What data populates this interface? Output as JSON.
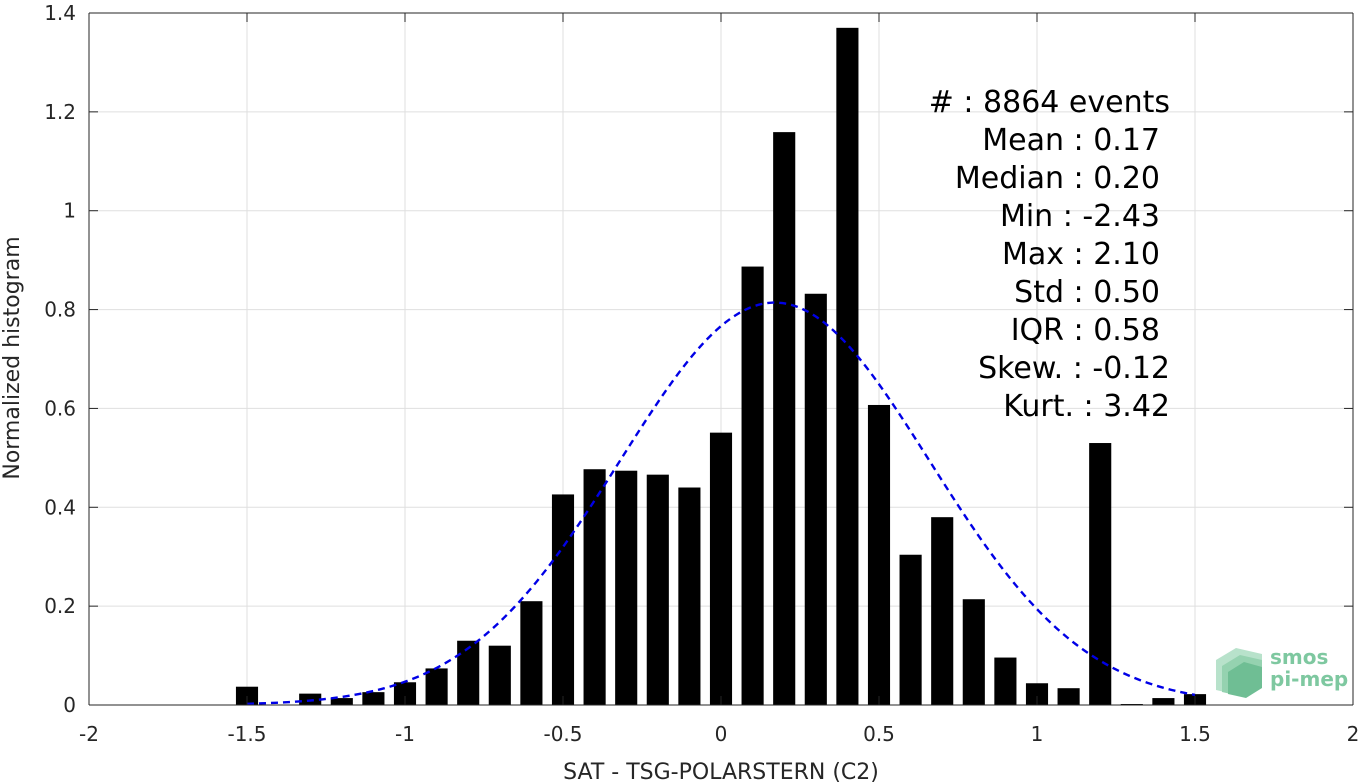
{
  "chart_data": {
    "type": "bar",
    "xlabel": "SAT - TSG-POLARSTERN (C2)",
    "ylabel": "Normalized histogram",
    "xlim": [
      -2,
      2
    ],
    "ylim": [
      0,
      1.4
    ],
    "grid": true,
    "xticks": [
      "-2",
      "-1.5",
      "-1",
      "-0.5",
      "0",
      "0.5",
      "1",
      "1.5",
      "2"
    ],
    "yticks": [
      "0",
      "0.2",
      "0.4",
      "0.6",
      "0.8",
      "1",
      "1.2",
      "1.4"
    ],
    "bins": [
      {
        "x": -1.5,
        "value": 0.037
      },
      {
        "x": -1.3,
        "value": 0.023
      },
      {
        "x": -1.2,
        "value": 0.014
      },
      {
        "x": -1.1,
        "value": 0.026
      },
      {
        "x": -1.0,
        "value": 0.046
      },
      {
        "x": -0.9,
        "value": 0.074
      },
      {
        "x": -0.8,
        "value": 0.13
      },
      {
        "x": -0.7,
        "value": 0.12
      },
      {
        "x": -0.6,
        "value": 0.21
      },
      {
        "x": -0.5,
        "value": 0.426
      },
      {
        "x": -0.4,
        "value": 0.477
      },
      {
        "x": -0.3,
        "value": 0.474
      },
      {
        "x": -0.2,
        "value": 0.466
      },
      {
        "x": -0.1,
        "value": 0.44
      },
      {
        "x": 0.0,
        "value": 0.551
      },
      {
        "x": 0.1,
        "value": 0.887
      },
      {
        "x": 0.2,
        "value": 1.159
      },
      {
        "x": 0.3,
        "value": 0.832
      },
      {
        "x": 0.4,
        "value": 1.37
      },
      {
        "x": 0.5,
        "value": 0.607
      },
      {
        "x": 0.6,
        "value": 0.304
      },
      {
        "x": 0.7,
        "value": 0.38
      },
      {
        "x": 0.8,
        "value": 0.214
      },
      {
        "x": 0.9,
        "value": 0.096
      },
      {
        "x": 1.0,
        "value": 0.044
      },
      {
        "x": 1.1,
        "value": 0.034
      },
      {
        "x": 1.2,
        "value": 0.53
      },
      {
        "x": 1.3,
        "value": 0.002
      },
      {
        "x": 1.4,
        "value": 0.014
      },
      {
        "x": 1.5,
        "value": 0.022
      }
    ],
    "bar_color": "#000000",
    "fit_curve": {
      "type": "normal",
      "mean": 0.17,
      "std": 0.49,
      "x_range": [
        -1.5,
        1.5
      ],
      "color": "#0000e6",
      "style": "dashed"
    },
    "stats": [
      {
        "label": "#  : 8864 events"
      },
      {
        "label": "Mean : 0.17"
      },
      {
        "label": "Median : 0.20"
      },
      {
        "label": "Min : -2.43"
      },
      {
        "label": "Max : 2.10"
      },
      {
        "label": "Std : 0.50"
      },
      {
        "label": "IQR : 0.58"
      },
      {
        "label": "Skew. : -0.12"
      },
      {
        "label": "Kurt. : 3.42"
      }
    ]
  },
  "logo": {
    "line1": "smos",
    "line2": "pi-mep",
    "color": "#7ec8a0"
  }
}
